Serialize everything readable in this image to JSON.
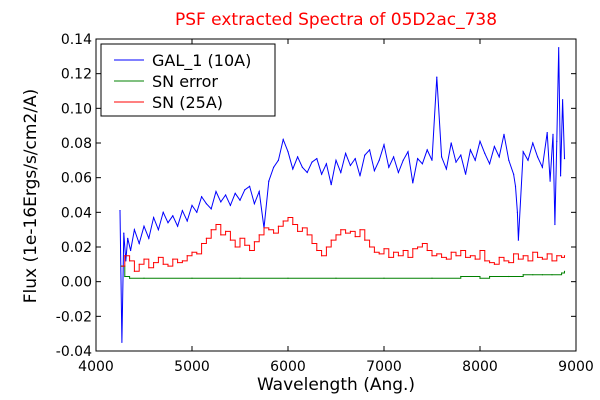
{
  "chart_data": {
    "type": "line",
    "title": "PSF extracted Spectra of 05D2ac_738",
    "title_color": "#ff0000",
    "xlabel": "Wavelength (Ang.)",
    "ylabel": "Flux (1e-16Ergs/s/cm2/A)",
    "xlim": [
      4000,
      9000
    ],
    "ylim": [
      -0.04,
      0.14
    ],
    "xticks": [
      "4000",
      "5000",
      "6000",
      "7000",
      "8000",
      "9000"
    ],
    "yticks": [
      "-0.04",
      "-0.02",
      "0.00",
      "0.02",
      "0.04",
      "0.06",
      "0.08",
      "0.10",
      "0.12",
      "0.14"
    ],
    "grid": false,
    "legend_position": "top-left",
    "series": [
      {
        "name": "GAL_1 (10A)",
        "color": "#0000ff",
        "step": false,
        "x": [
          4250,
          4270,
          4290,
          4310,
          4330,
          4360,
          4400,
          4450,
          4500,
          4550,
          4600,
          4650,
          4700,
          4750,
          4800,
          4850,
          4900,
          4950,
          5000,
          5050,
          5100,
          5150,
          5200,
          5250,
          5300,
          5350,
          5400,
          5450,
          5500,
          5550,
          5600,
          5650,
          5700,
          5750,
          5800,
          5850,
          5900,
          5950,
          6000,
          6050,
          6100,
          6150,
          6200,
          6250,
          6300,
          6350,
          6400,
          6450,
          6500,
          6550,
          6600,
          6650,
          6700,
          6750,
          6800,
          6850,
          6900,
          6950,
          7000,
          7050,
          7100,
          7150,
          7200,
          7250,
          7300,
          7350,
          7400,
          7450,
          7500,
          7550,
          7600,
          7650,
          7700,
          7750,
          7800,
          7850,
          7900,
          7950,
          8000,
          8050,
          8100,
          8150,
          8200,
          8250,
          8300,
          8350,
          8370,
          8390,
          8400,
          8450,
          8500,
          8550,
          8600,
          8650,
          8700,
          8730,
          8760,
          8780,
          8800,
          8820,
          8840,
          8860,
          8880
        ],
        "values": [
          0.041,
          -0.035,
          0.028,
          0.012,
          0.025,
          0.018,
          0.03,
          0.022,
          0.032,
          0.025,
          0.037,
          0.03,
          0.04,
          0.034,
          0.038,
          0.032,
          0.041,
          0.035,
          0.044,
          0.04,
          0.049,
          0.045,
          0.042,
          0.052,
          0.046,
          0.05,
          0.044,
          0.051,
          0.047,
          0.053,
          0.055,
          0.045,
          0.052,
          0.031,
          0.058,
          0.066,
          0.07,
          0.082,
          0.075,
          0.065,
          0.072,
          0.066,
          0.063,
          0.069,
          0.071,
          0.062,
          0.068,
          0.056,
          0.07,
          0.063,
          0.074,
          0.067,
          0.071,
          0.061,
          0.073,
          0.076,
          0.064,
          0.07,
          0.079,
          0.066,
          0.072,
          0.063,
          0.07,
          0.075,
          0.057,
          0.071,
          0.068,
          0.076,
          0.07,
          0.118,
          0.072,
          0.065,
          0.08,
          0.069,
          0.073,
          0.062,
          0.076,
          0.07,
          0.081,
          0.074,
          0.068,
          0.078,
          0.072,
          0.085,
          0.07,
          0.062,
          0.055,
          0.04,
          0.024,
          0.075,
          0.07,
          0.08,
          0.072,
          0.066,
          0.086,
          0.058,
          0.085,
          0.033,
          0.081,
          0.135,
          0.061,
          0.105,
          0.071
        ]
      },
      {
        "name": "SN error",
        "color": "#008000",
        "step": true,
        "x": [
          4260,
          4300,
          4350,
          4500,
          5000,
          5500,
          6000,
          6500,
          7000,
          7500,
          7800,
          8000,
          8100,
          8300,
          8450,
          8550,
          8650,
          8750,
          8850,
          8880
        ],
        "values": [
          0.009,
          0.003,
          0.002,
          0.002,
          0.002,
          0.002,
          0.002,
          0.002,
          0.002,
          0.002,
          0.003,
          0.002,
          0.003,
          0.003,
          0.004,
          0.004,
          0.004,
          0.004,
          0.005,
          0.006
        ]
      },
      {
        "name": "SN (25A)",
        "color": "#ff0000",
        "step": true,
        "x": [
          4270,
          4300,
          4350,
          4400,
          4450,
          4500,
          4550,
          4600,
          4650,
          4700,
          4750,
          4800,
          4850,
          4900,
          4950,
          5000,
          5050,
          5100,
          5150,
          5200,
          5250,
          5300,
          5350,
          5400,
          5450,
          5500,
          5550,
          5600,
          5650,
          5700,
          5750,
          5800,
          5850,
          5900,
          5950,
          6000,
          6050,
          6100,
          6150,
          6200,
          6250,
          6300,
          6350,
          6400,
          6450,
          6500,
          6550,
          6600,
          6650,
          6700,
          6750,
          6800,
          6850,
          6900,
          6950,
          7000,
          7050,
          7100,
          7150,
          7200,
          7250,
          7300,
          7350,
          7400,
          7450,
          7500,
          7550,
          7600,
          7650,
          7700,
          7750,
          7800,
          7850,
          7900,
          7950,
          8000,
          8050,
          8100,
          8150,
          8200,
          8250,
          8300,
          8350,
          8400,
          8450,
          8500,
          8550,
          8600,
          8650,
          8700,
          8750,
          8800,
          8850,
          8880
        ],
        "values": [
          0.009,
          0.015,
          0.012,
          0.006,
          0.01,
          0.013,
          0.008,
          0.011,
          0.014,
          0.01,
          0.009,
          0.013,
          0.011,
          0.012,
          0.015,
          0.017,
          0.016,
          0.022,
          0.025,
          0.03,
          0.033,
          0.027,
          0.029,
          0.024,
          0.02,
          0.025,
          0.021,
          0.018,
          0.023,
          0.027,
          0.031,
          0.03,
          0.028,
          0.032,
          0.035,
          0.037,
          0.033,
          0.029,
          0.031,
          0.027,
          0.022,
          0.018,
          0.015,
          0.02,
          0.024,
          0.027,
          0.03,
          0.028,
          0.029,
          0.026,
          0.03,
          0.024,
          0.02,
          0.017,
          0.016,
          0.019,
          0.014,
          0.017,
          0.015,
          0.018,
          0.014,
          0.019,
          0.02,
          0.022,
          0.018,
          0.015,
          0.016,
          0.014,
          0.013,
          0.017,
          0.015,
          0.018,
          0.014,
          0.015,
          0.013,
          0.018,
          0.012,
          0.011,
          0.01,
          0.014,
          0.012,
          0.011,
          0.016,
          0.013,
          0.015,
          0.012,
          0.017,
          0.014,
          0.013,
          0.016,
          0.012,
          0.015,
          0.014,
          0.015
        ]
      }
    ]
  }
}
